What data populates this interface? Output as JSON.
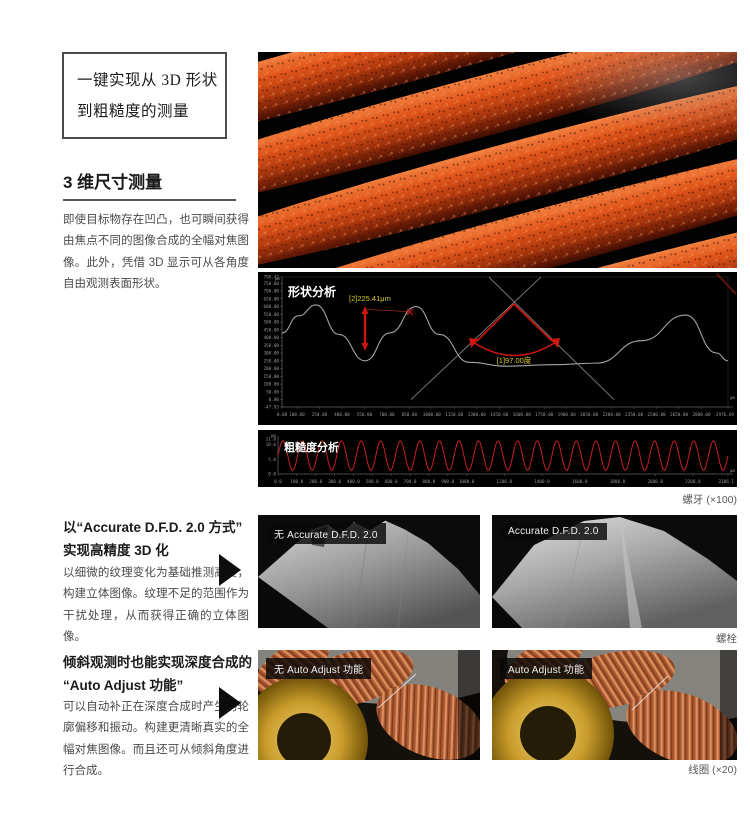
{
  "callout": {
    "text_line1": "一键实现从 3D 形状",
    "text_line2": "到粗糙度的测量"
  },
  "section_dimension": {
    "title": "3 维尺寸测量",
    "body": "即使目标物存在凹凸，也可瞬间获得由焦点不同的图像合成的全幅对焦图像。此外，凭借 3D 显示可从各角度自由观测表面形状。",
    "caption": "螺牙 (×100)"
  },
  "section_dfd": {
    "title_line1": "以“Accurate D.F.D. 2.0 方式”",
    "title_line2": "实现高精度 3D 化",
    "body": "以细微的纹理变化为基础推测高度，构建立体图像。纹理不足的范围作为干扰处理，从而获得正确的立体图像。",
    "label_without": "无 Accurate D.F.D. 2.0",
    "label_with": "Accurate D.F.D. 2.0",
    "caption": "螺栓"
  },
  "section_auto": {
    "title_line1": "倾斜观测时也能实现深度合成的",
    "title_line2": "“Auto Adjust 功能”",
    "body": "可以自动补正在深度合成时产生的轮廓偏移和振动。构建更清晰真实的全幅对焦图像。而且还可从倾斜角度进行合成。",
    "label_without": "无 Auto Adjust 功能",
    "label_with": "Auto Adjust 功能",
    "caption": "线圈 (×20)"
  },
  "chart_data": [
    {
      "type": "line",
      "title": "形状分析",
      "unit": "μm",
      "xlim": [
        0,
        2976.69
      ],
      "ylim": [
        -47.93,
        790.42
      ],
      "x_ticks": [
        "0.00",
        "100.00",
        "250.00",
        "400.00",
        "550.00",
        "700.00",
        "850.00",
        "1000.00",
        "1150.00",
        "1300.00",
        "1450.00",
        "1600.00",
        "1750.00",
        "1900.00",
        "2050.00",
        "2200.00",
        "2350.00",
        "2500.00",
        "2650.00",
        "2800.00",
        "2976.69"
      ],
      "y_ticks": [
        "790.42",
        "750.00",
        "700.00",
        "650.00",
        "600.00",
        "550.00",
        "500.00",
        "450.00",
        "400.00",
        "350.00",
        "300.00",
        "250.00",
        "200.00",
        "150.00",
        "100.00",
        "50.00",
        "0.00",
        "-47.93"
      ],
      "grid": false,
      "legend": false,
      "series": [
        {
          "name": "surface-profile",
          "x": [
            0,
            110,
            227,
            380,
            554,
            720,
            894,
            1050,
            1250,
            1500,
            1800,
            2100,
            2400,
            2695,
            2900,
            2976
          ],
          "y": [
            430,
            540,
            610,
            420,
            250,
            430,
            600,
            420,
            240,
            215,
            225,
            235,
            380,
            545,
            300,
            250
          ]
        },
        {
          "name": "flank-line-1",
          "x": [
            861,
            1728
          ],
          "y": [
            0,
            790
          ]
        },
        {
          "name": "flank-line-2",
          "x": [
            1381,
            2215
          ],
          "y": [
            790,
            0
          ]
        }
      ],
      "annotations": [
        {
          "label": "[2]225.41μm",
          "type": "height-measurement"
        },
        {
          "label": "[1]97.00度",
          "type": "angle-measurement"
        }
      ]
    },
    {
      "type": "line",
      "title": "粗糙度分析",
      "unit": "μm",
      "xlim": [
        0,
        2386.1
      ],
      "ylim": [
        0,
        11.8
      ],
      "x_ticks": [
        "0.0",
        "100.0",
        "200.0",
        "300.0",
        "400.0",
        "500.0",
        "600.0",
        "700.0",
        "800.0",
        "900.0",
        "1000.0",
        "1200.0",
        "1400.0",
        "1600.0",
        "1800.0",
        "2000.0",
        "2200.0",
        "2386.1"
      ],
      "y_ticks": [
        "11.8",
        "10.0",
        "5.0",
        "0.0"
      ],
      "grid": false,
      "legend": false,
      "series": [
        {
          "name": "roughness-profile",
          "pattern": "sine",
          "mean": 6.2,
          "amplitude": 5.0,
          "period_um": 104,
          "cycles": 23
        }
      ]
    }
  ],
  "colors": {
    "annotation_red": "#cc1710",
    "annotation_yellow": "#d4c92e",
    "chart_bg": "#000000",
    "profile_gray": "#a9aea5",
    "thread_orange": "#c84614",
    "copper": "#b4613a",
    "gold": "#c89b2a"
  }
}
